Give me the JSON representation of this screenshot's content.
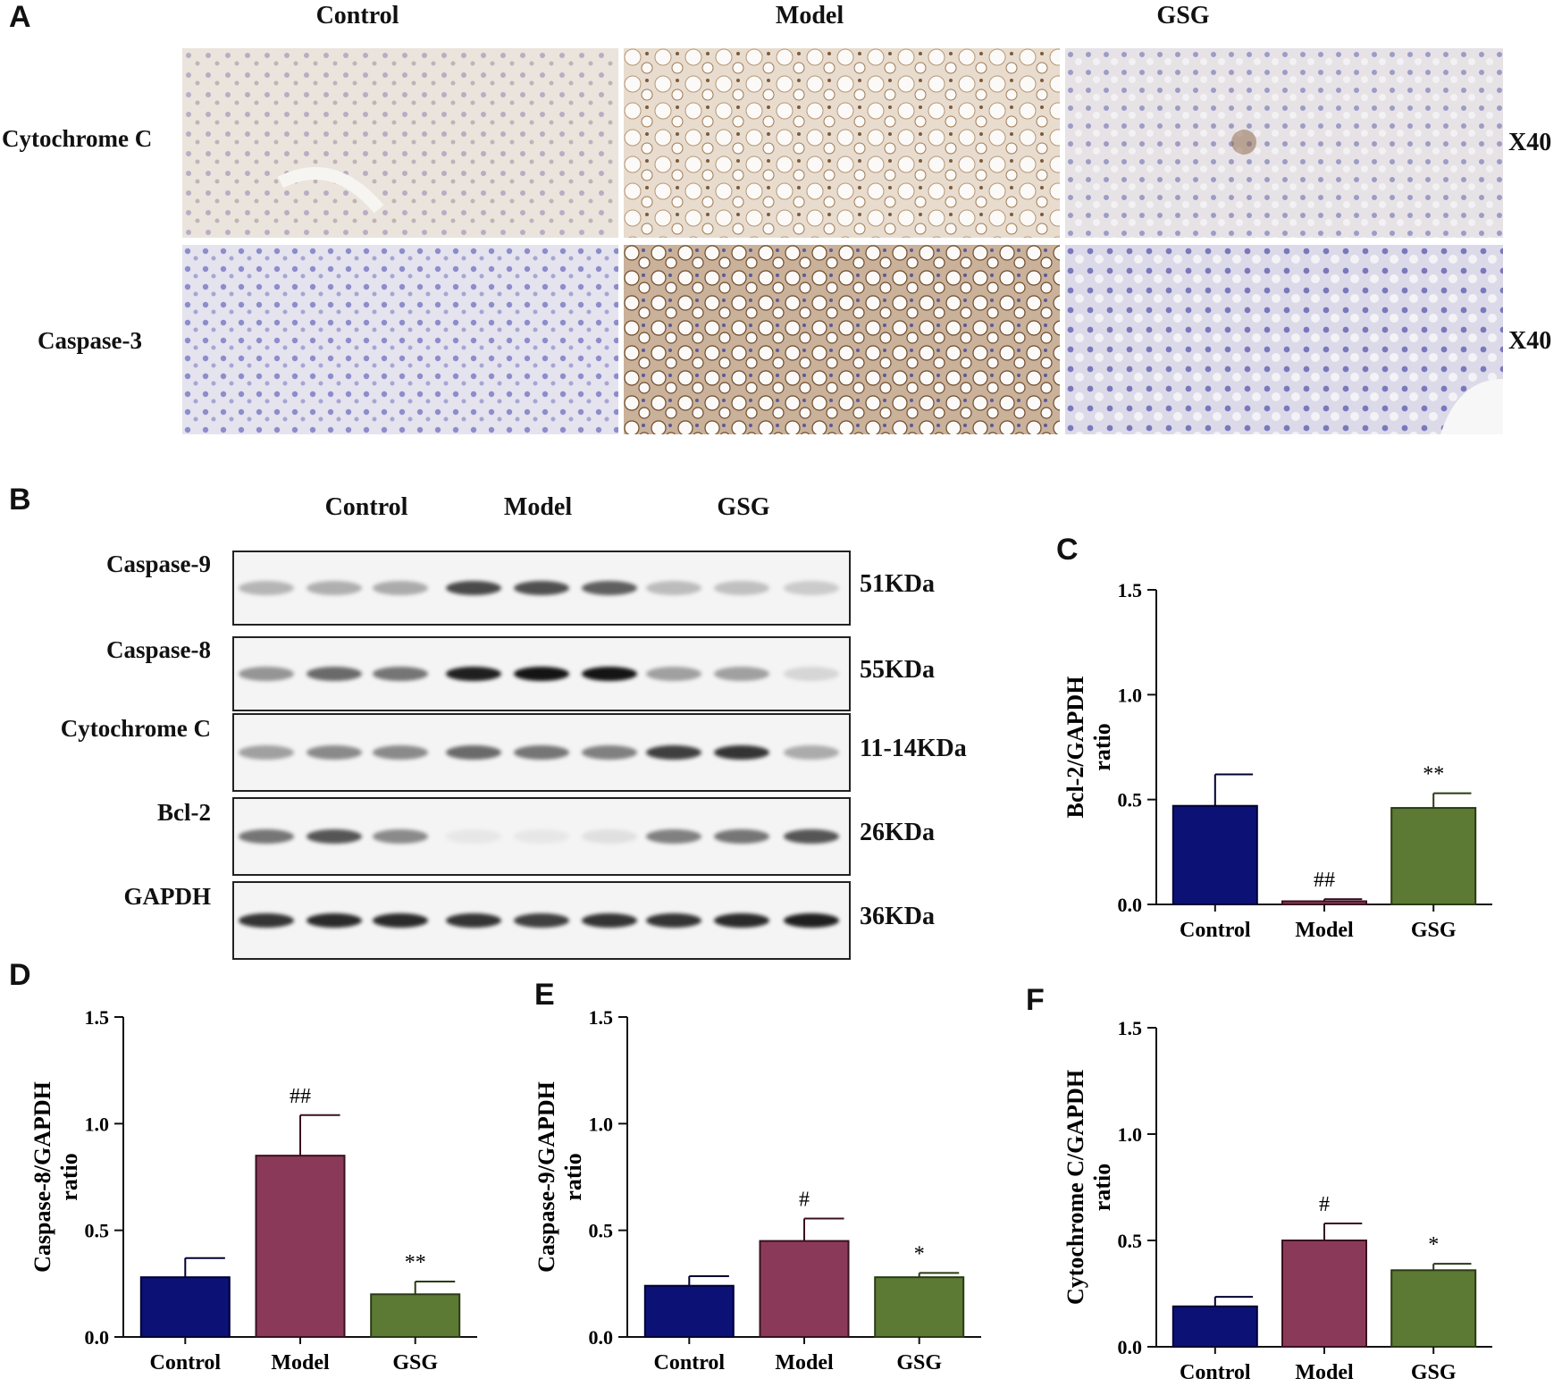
{
  "panel_labels": {
    "a": "A",
    "b": "B",
    "c": "C",
    "d": "D",
    "e": "E",
    "f": "F"
  },
  "ihc": {
    "columns": [
      "Control",
      "Model",
      "GSG"
    ],
    "rows": [
      "Cytochrome C",
      "Caspase-3"
    ],
    "magnification": "X40"
  },
  "western": {
    "groups": [
      "Control",
      "Model",
      "GSG"
    ],
    "rows": [
      {
        "protein": "Caspase-9",
        "kda": "51KDa",
        "intensity": [
          0.25,
          0.28,
          0.3,
          0.75,
          0.72,
          0.65,
          0.22,
          0.2,
          0.15
        ]
      },
      {
        "protein": "Caspase-8",
        "kda": "55KDa",
        "intensity": [
          0.4,
          0.6,
          0.55,
          0.95,
          1.0,
          1.0,
          0.35,
          0.35,
          0.1
        ]
      },
      {
        "protein": "Cytochrome C",
        "kda": "11-14KDa",
        "intensity": [
          0.35,
          0.45,
          0.45,
          0.6,
          0.55,
          0.5,
          0.8,
          0.85,
          0.3
        ]
      },
      {
        "protein": "Bcl-2",
        "kda": "26KDa",
        "intensity": [
          0.55,
          0.7,
          0.45,
          0.02,
          0.02,
          0.05,
          0.5,
          0.55,
          0.7
        ]
      },
      {
        "protein": "GAPDH",
        "kda": "36KDa",
        "intensity": [
          0.85,
          0.9,
          0.9,
          0.85,
          0.8,
          0.85,
          0.85,
          0.9,
          0.95
        ]
      }
    ]
  },
  "colors": {
    "control": "#0c1275",
    "model": "#8a3a58",
    "gsg": "#5c7a34"
  },
  "chart_data": [
    {
      "type": "bar",
      "panel": "C",
      "categories": [
        "Control",
        "Model",
        "GSG"
      ],
      "values": [
        0.47,
        0.015,
        0.46
      ],
      "errors": [
        0.15,
        0.01,
        0.07
      ],
      "annotations": [
        "",
        "##",
        "**"
      ],
      "ylabel": "Bcl-2/GAPDH ratio",
      "ylim": [
        0,
        1.5
      ],
      "yticks": [
        "0.0",
        "0.5",
        "1.0",
        "1.5"
      ]
    },
    {
      "type": "bar",
      "panel": "D",
      "categories": [
        "Control",
        "Model",
        "GSG"
      ],
      "values": [
        0.28,
        0.85,
        0.2
      ],
      "errors": [
        0.09,
        0.19,
        0.06
      ],
      "annotations": [
        "",
        "##",
        "**"
      ],
      "ylabel": "Caspase-8/GAPDH ratio",
      "ylim": [
        0,
        1.5
      ],
      "yticks": [
        "0.0",
        "0.5",
        "1.0",
        "1.5"
      ]
    },
    {
      "type": "bar",
      "panel": "E",
      "categories": [
        "Control",
        "Model",
        "GSG"
      ],
      "values": [
        0.24,
        0.45,
        0.28
      ],
      "errors": [
        0.045,
        0.105,
        0.02
      ],
      "annotations": [
        "",
        "#",
        "*"
      ],
      "ylabel": "Caspase-9/GAPDH ratio",
      "ylim": [
        0,
        1.5
      ],
      "yticks": [
        "0.0",
        "0.5",
        "1.0",
        "1.5"
      ]
    },
    {
      "type": "bar",
      "panel": "F",
      "categories": [
        "Control",
        "Model",
        "GSG"
      ],
      "values": [
        0.19,
        0.5,
        0.36
      ],
      "errors": [
        0.045,
        0.08,
        0.03
      ],
      "annotations": [
        "",
        "#",
        "*"
      ],
      "ylabel": "Cytochrome C/GAPDH ratio",
      "ylim": [
        0,
        1.5
      ],
      "yticks": [
        "0.0",
        "0.5",
        "1.0",
        "1.5"
      ]
    }
  ]
}
